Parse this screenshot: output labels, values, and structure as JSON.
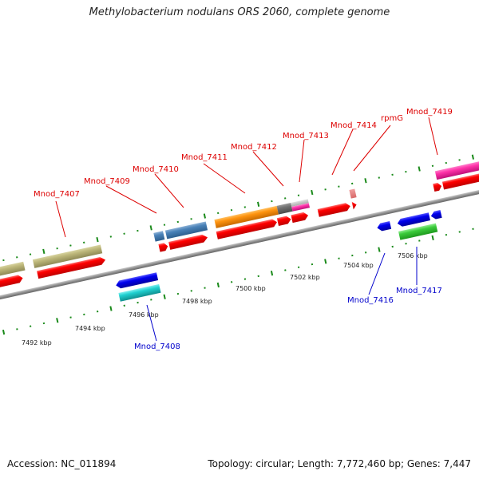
{
  "title": "Methylobacterium nodulans ORS 2060, complete genome",
  "footer": {
    "accession": "Accession: NC_011894",
    "info": "Topology: circular; Length: 7,772,460 bp; Genes: 7,447"
  },
  "colors": {
    "backbone": "#888888",
    "ticks": "#1a8a1a",
    "forward_label": "#dd0000",
    "reverse_label": "#0000cc"
  },
  "kbp_labels": [
    "7492 kbp",
    "7494 kbp",
    "7496 kbp",
    "7498 kbp",
    "7500 kbp",
    "7502 kbp",
    "7504 kbp",
    "7506 kbp"
  ],
  "forward_genes": [
    {
      "name": "Mnod_7407",
      "label": "Mnod_7407"
    },
    {
      "name": "Mnod_7409",
      "label": "Mnod_7409"
    },
    {
      "name": "Mnod_7410",
      "label": "Mnod_7410"
    },
    {
      "name": "Mnod_7411",
      "label": "Mnod_7411"
    },
    {
      "name": "Mnod_7412",
      "label": "Mnod_7412"
    },
    {
      "name": "Mnod_7413",
      "label": "Mnod_7413"
    },
    {
      "name": "Mnod_7414",
      "label": "Mnod_7414"
    },
    {
      "name": "rpmG",
      "label": "rpmG"
    },
    {
      "name": "Mnod_7419",
      "label": "Mnod_7419"
    }
  ],
  "reverse_genes": [
    {
      "name": "Mnod_7408",
      "label": "Mnod_7408"
    },
    {
      "name": "Mnod_7416",
      "label": "Mnod_7416"
    },
    {
      "name": "Mnod_7417",
      "label": "Mnod_7417"
    }
  ]
}
